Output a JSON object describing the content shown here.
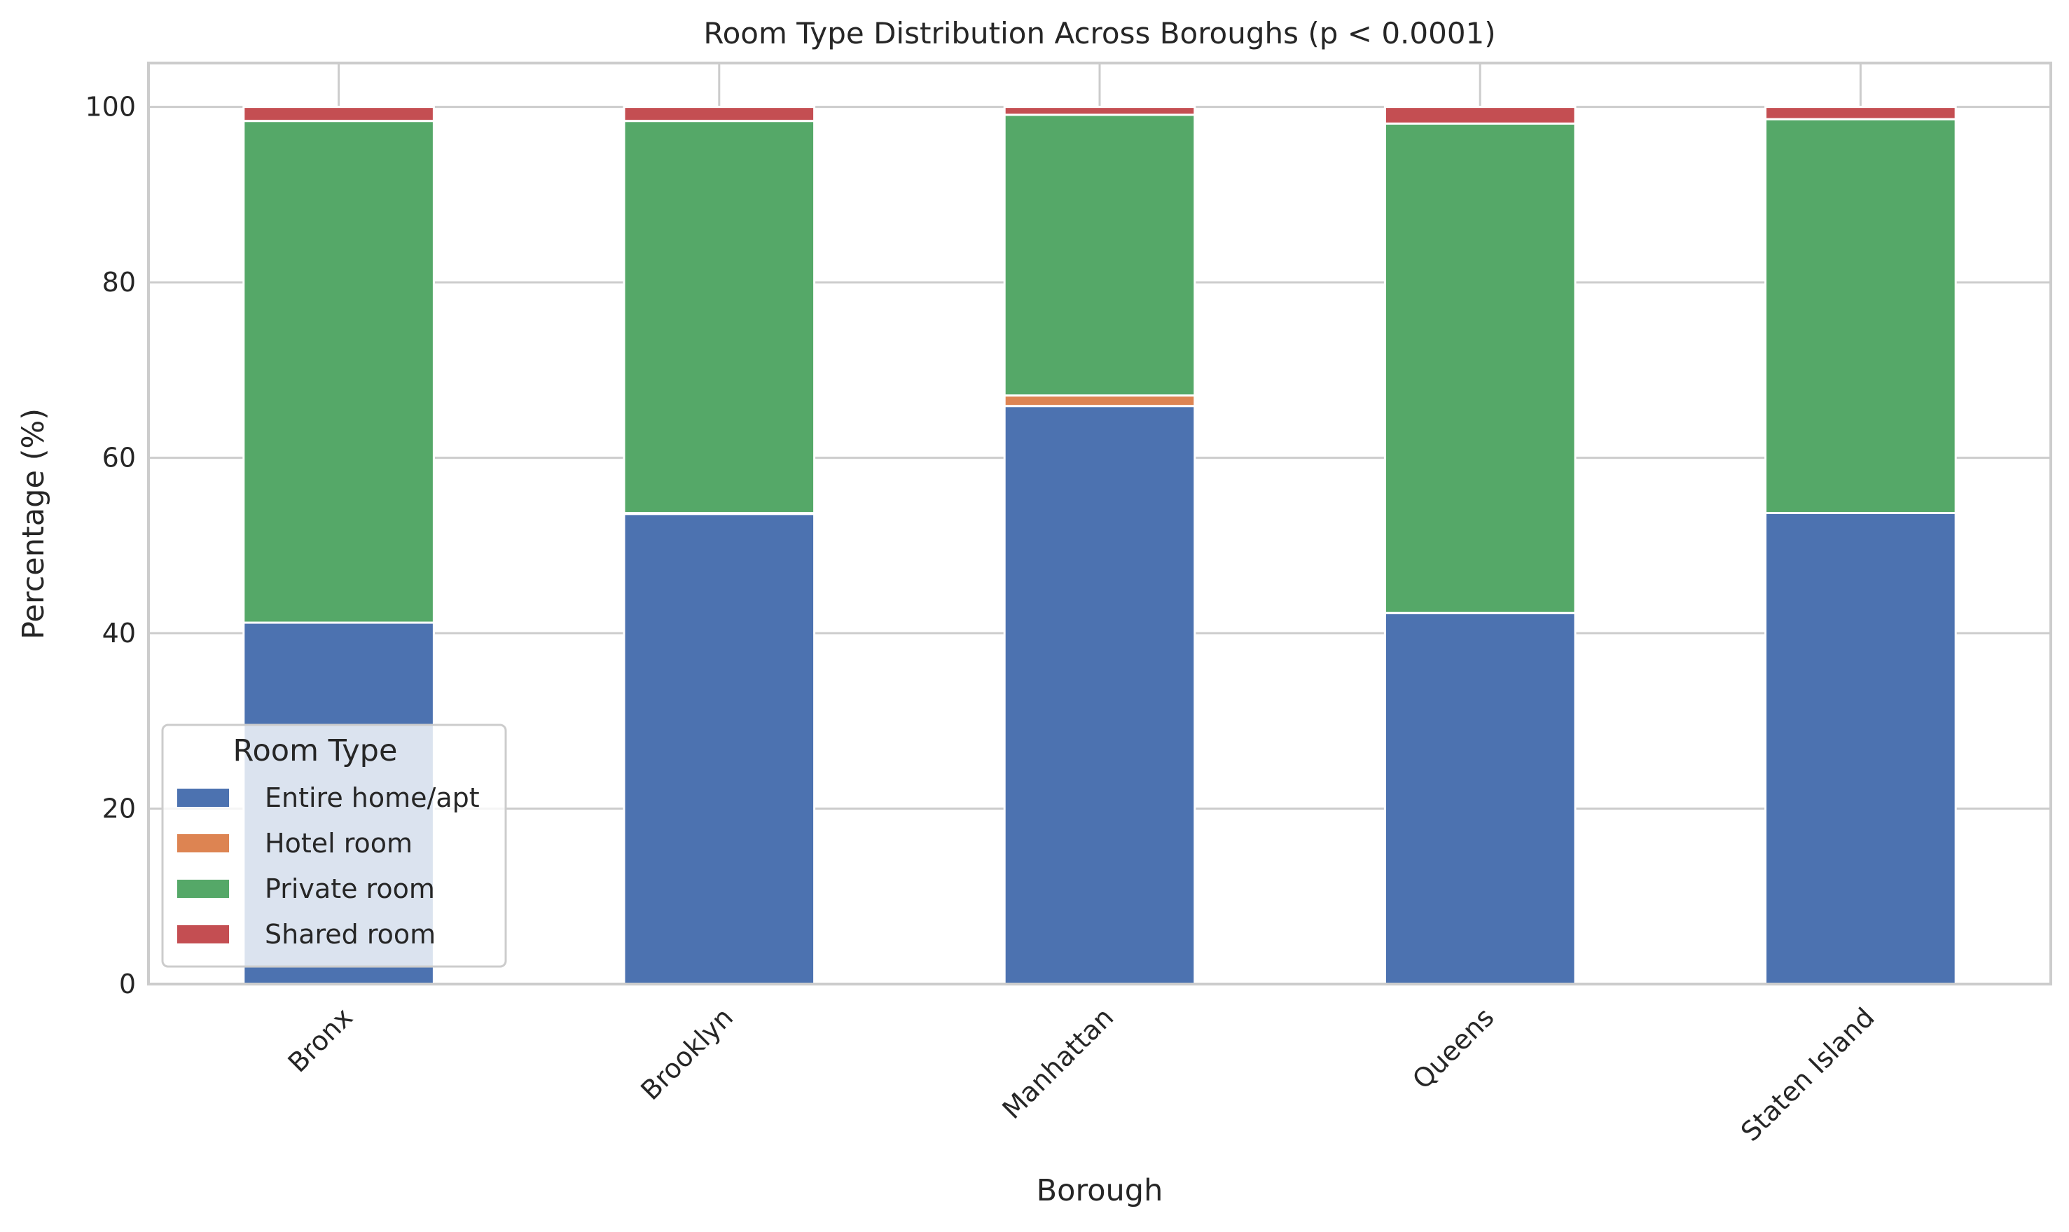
{
  "chart_data": {
    "type": "bar",
    "stacked": true,
    "title": "Room Type Distribution Across Boroughs (p < 0.0001)",
    "xlabel": "Borough",
    "ylabel": "Percentage (%)",
    "categories": [
      "Bronx",
      "Brooklyn",
      "Manhattan",
      "Queens",
      "Staten Island"
    ],
    "ylim": [
      0,
      105
    ],
    "yticks": [
      0,
      20,
      40,
      60,
      80,
      100
    ],
    "grid": true,
    "legend": {
      "title": "Room Type",
      "placement": "lower-left"
    },
    "series": [
      {
        "name": "Entire home/apt",
        "color": "#4c72b0",
        "values": [
          41.2,
          53.6,
          65.9,
          42.3,
          53.7
        ]
      },
      {
        "name": "Hotel room",
        "color": "#dd8452",
        "values": [
          0.0,
          0.1,
          1.2,
          0.0,
          0.0
        ]
      },
      {
        "name": "Private room",
        "color": "#55a868",
        "values": [
          57.2,
          44.7,
          32.0,
          55.8,
          44.9
        ]
      },
      {
        "name": "Shared room",
        "color": "#c44e52",
        "values": [
          1.6,
          1.6,
          0.9,
          1.9,
          1.4
        ]
      }
    ]
  }
}
